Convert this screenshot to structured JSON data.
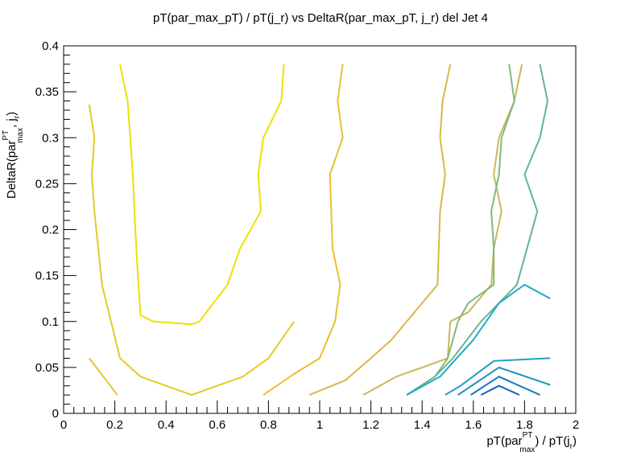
{
  "chart_data": {
    "type": "contour",
    "title": "pT(par_max_pT) / pT(j_r) vs DeltaR(par_max_pT, j_r) del Jet 4",
    "xlabel": {
      "pre": "pT(par",
      "sup": "PT",
      "sub": "max",
      "post": ") / pT(j",
      "post_sub": "r",
      "end": ")"
    },
    "ylabel": {
      "pre": "DeltaR(par",
      "sup": "PT",
      "sub": "max",
      "post": ", j",
      "post_sub": "r",
      "end": ")"
    },
    "xlim": [
      0,
      2
    ],
    "ylim": [
      0,
      0.4
    ],
    "x_ticks": [
      0,
      0.2,
      0.4,
      0.6,
      0.8,
      1,
      1.2,
      1.4,
      1.6,
      1.8,
      2
    ],
    "x_tick_labels": [
      "0",
      "0.2",
      "0.4",
      "0.6",
      "0.8",
      "1",
      "1.2",
      "1.4",
      "1.6",
      "1.8",
      "2"
    ],
    "y_ticks": [
      0,
      0.05,
      0.1,
      0.15,
      0.2,
      0.25,
      0.3,
      0.35,
      0.4
    ],
    "y_tick_labels": [
      "0",
      "0.05",
      "0.1",
      "0.15",
      "0.2",
      "0.25",
      "0.3",
      "0.35",
      "0.4"
    ],
    "grid": false,
    "contours": [
      {
        "color": "#f0e000",
        "points": [
          [
            0.22,
            0.38
          ],
          [
            0.25,
            0.34
          ],
          [
            0.27,
            0.26
          ],
          [
            0.28,
            0.2
          ],
          [
            0.29,
            0.15
          ],
          [
            0.3,
            0.107
          ],
          [
            0.35,
            0.1
          ],
          [
            0.5,
            0.097
          ],
          [
            0.53,
            0.1
          ],
          [
            0.64,
            0.14
          ],
          [
            0.69,
            0.18
          ],
          [
            0.77,
            0.22
          ],
          [
            0.76,
            0.26
          ],
          [
            0.78,
            0.3
          ],
          [
            0.85,
            0.34
          ],
          [
            0.86,
            0.38
          ]
        ]
      },
      {
        "color": "#e8c828",
        "points": [
          [
            0.1,
            0.336
          ],
          [
            0.12,
            0.3
          ],
          [
            0.11,
            0.26
          ],
          [
            0.12,
            0.22
          ],
          [
            0.15,
            0.14
          ],
          [
            0.22,
            0.06
          ],
          [
            0.3,
            0.04
          ],
          [
            0.5,
            0.02
          ],
          [
            0.7,
            0.04
          ],
          [
            0.8,
            0.06
          ],
          [
            0.85,
            0.08
          ],
          [
            0.9,
            0.1
          ]
        ]
      },
      {
        "color": "#e8c828",
        "points": [
          [
            0.1,
            0.06
          ],
          [
            0.21,
            0.02
          ]
        ]
      },
      {
        "color": "#e8c030",
        "points": [
          [
            0.78,
            0.02
          ],
          [
            0.9,
            0.043
          ],
          [
            1.0,
            0.06
          ],
          [
            1.06,
            0.1
          ],
          [
            1.08,
            0.14
          ],
          [
            1.05,
            0.18
          ],
          [
            1.04,
            0.26
          ],
          [
            1.09,
            0.3
          ],
          [
            1.07,
            0.34
          ],
          [
            1.09,
            0.38
          ]
        ]
      },
      {
        "color": "#d8b848",
        "points": [
          [
            0.96,
            0.02
          ],
          [
            1.1,
            0.036
          ],
          [
            1.2,
            0.06
          ],
          [
            1.28,
            0.08
          ],
          [
            1.37,
            0.11
          ],
          [
            1.46,
            0.14
          ],
          [
            1.47,
            0.22
          ],
          [
            1.49,
            0.26
          ],
          [
            1.47,
            0.3
          ],
          [
            1.48,
            0.34
          ],
          [
            1.51,
            0.38
          ]
        ]
      },
      {
        "color": "#c8b858",
        "points": [
          [
            1.17,
            0.02
          ],
          [
            1.3,
            0.04
          ],
          [
            1.4,
            0.05
          ],
          [
            1.5,
            0.06
          ],
          [
            1.51,
            0.1
          ],
          [
            1.58,
            0.11
          ],
          [
            1.67,
            0.14
          ],
          [
            1.68,
            0.18
          ],
          [
            1.71,
            0.22
          ],
          [
            1.68,
            0.26
          ],
          [
            1.7,
            0.3
          ],
          [
            1.76,
            0.34
          ],
          [
            1.79,
            0.38
          ]
        ]
      },
      {
        "color": "#80b880",
        "points": [
          [
            1.34,
            0.02
          ],
          [
            1.45,
            0.04
          ],
          [
            1.5,
            0.06
          ],
          [
            1.54,
            0.1
          ],
          [
            1.58,
            0.12
          ],
          [
            1.68,
            0.14
          ],
          [
            1.68,
            0.18
          ],
          [
            1.67,
            0.22
          ],
          [
            1.7,
            0.26
          ],
          [
            1.71,
            0.3
          ],
          [
            1.76,
            0.34
          ],
          [
            1.74,
            0.38
          ]
        ]
      },
      {
        "color": "#68b490",
        "points": [
          [
            1.34,
            0.02
          ],
          [
            1.45,
            0.04
          ],
          [
            1.52,
            0.06
          ],
          [
            1.63,
            0.1
          ],
          [
            1.77,
            0.14
          ],
          [
            1.85,
            0.22
          ],
          [
            1.8,
            0.26
          ],
          [
            1.86,
            0.3
          ],
          [
            1.89,
            0.34
          ],
          [
            1.86,
            0.38
          ]
        ]
      },
      {
        "color": "#20a8c8",
        "points": [
          [
            1.34,
            0.02
          ],
          [
            1.47,
            0.04
          ],
          [
            1.6,
            0.08
          ],
          [
            1.65,
            0.1
          ],
          [
            1.7,
            0.12
          ],
          [
            1.8,
            0.14
          ],
          [
            1.9,
            0.125
          ]
        ]
      },
      {
        "color": "#20a0c0",
        "points": [
          [
            1.49,
            0.02
          ],
          [
            1.55,
            0.03
          ],
          [
            1.68,
            0.057
          ],
          [
            1.9,
            0.06
          ]
        ]
      },
      {
        "color": "#1890c0",
        "points": [
          [
            1.54,
            0.02
          ],
          [
            1.7,
            0.05
          ],
          [
            1.9,
            0.031
          ]
        ]
      },
      {
        "color": "#1878c0",
        "points": [
          [
            1.59,
            0.02
          ],
          [
            1.7,
            0.04
          ],
          [
            1.86,
            0.02
          ]
        ]
      },
      {
        "color": "#1860b8",
        "points": [
          [
            1.63,
            0.02
          ],
          [
            1.7,
            0.03
          ],
          [
            1.78,
            0.02
          ]
        ]
      }
    ]
  }
}
